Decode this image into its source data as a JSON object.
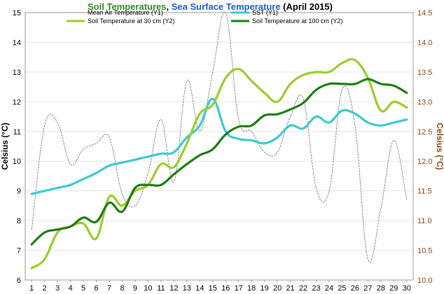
{
  "chart_data": {
    "type": "line",
    "title_parts": [
      {
        "text": "Soil Temperatures",
        "color": "#2E8B20"
      },
      {
        "text": ", ",
        "color": "#000000"
      },
      {
        "text": "Sea Surface Temperature",
        "color": "#1E5FCF"
      },
      {
        "text": " (April 2015)",
        "color": "#000000"
      }
    ],
    "ylabel_left": "Celsius (°C)",
    "ylabel_right": "Celsius (°C)",
    "colors": {
      "right_axis": "#8B4513",
      "gridline": "#e6e6e6"
    },
    "x": [
      1,
      2,
      3,
      4,
      5,
      6,
      7,
      8,
      9,
      10,
      11,
      12,
      13,
      14,
      15,
      16,
      17,
      18,
      19,
      20,
      21,
      22,
      23,
      24,
      25,
      26,
      27,
      28,
      29,
      30
    ],
    "x_tick_labels": [
      "1",
      "2",
      "3",
      "4",
      "5",
      "6",
      "7",
      "8",
      "9",
      "10",
      "11",
      "12",
      "13",
      "14",
      "15",
      "16",
      "17",
      "18",
      "19",
      "20",
      "21",
      "22",
      "23",
      "24",
      "25",
      "26",
      "27",
      "28",
      "29",
      "30"
    ],
    "y_left": {
      "min": 6,
      "max": 15,
      "ticks": [
        6,
        7,
        8,
        9,
        10,
        11,
        12,
        13,
        14,
        15
      ],
      "tick_labels": [
        "6",
        "7",
        "8",
        "9",
        "10",
        "11",
        "12",
        "13",
        "14",
        "15"
      ]
    },
    "y_right": {
      "min": 10.0,
      "max": 14.5,
      "ticks": [
        10.0,
        10.5,
        11.0,
        11.5,
        12.0,
        12.5,
        13.0,
        13.5,
        14.0,
        14.5
      ],
      "tick_labels": [
        "10.0",
        "10.5",
        "11.0",
        "11.5",
        "12.0",
        "12.5",
        "13.0",
        "13.5",
        "14.0",
        "14.5"
      ]
    },
    "grid": true,
    "legend_placement": "top",
    "series": [
      {
        "name": "Mean Air Temperature (Y1)",
        "axis": "left",
        "color": "#888888",
        "dashed": true,
        "width": 1,
        "values": [
          7.7,
          11.2,
          11.3,
          9.9,
          10.4,
          10.6,
          10.8,
          8.9,
          8.5,
          9.6,
          11.4,
          9.3,
          12.7,
          11.0,
          13.0,
          15.0,
          11.4,
          11.0,
          10.3,
          10.3,
          11.5,
          12.1,
          9.1,
          9.0,
          12.4,
          11.2,
          6.7,
          8.4,
          10.7,
          8.7
        ]
      },
      {
        "name": "SST (Y1)",
        "axis": "left",
        "color": "#3EC9D0",
        "dashed": false,
        "width": 3.2,
        "values": [
          8.9,
          9.0,
          9.1,
          9.2,
          9.4,
          9.6,
          9.85,
          9.95,
          10.05,
          10.15,
          10.25,
          10.3,
          10.8,
          11.2,
          12.1,
          11.0,
          10.75,
          10.7,
          10.6,
          10.8,
          11.2,
          11.1,
          11.5,
          11.3,
          11.7,
          11.6,
          11.3,
          11.2,
          11.3,
          11.4
        ]
      },
      {
        "name": "Soil Temperature at 30 cm (Y2)",
        "axis": "right",
        "color": "#9ACD2D",
        "dashed": false,
        "width": 3.2,
        "values": [
          10.2,
          10.35,
          10.8,
          10.9,
          10.95,
          10.7,
          11.4,
          11.25,
          11.5,
          11.6,
          11.95,
          11.9,
          12.3,
          12.8,
          12.95,
          13.4,
          13.55,
          13.35,
          13.15,
          13.0,
          13.3,
          13.45,
          13.5,
          13.5,
          13.65,
          13.7,
          13.4,
          12.85,
          13.0,
          12.9
        ]
      },
      {
        "name": "Soil Temperature at 100 cm (Y2)",
        "axis": "right",
        "color": "#1E7D14",
        "dashed": false,
        "width": 3.2,
        "values": [
          10.6,
          10.8,
          10.85,
          10.9,
          11.05,
          10.98,
          11.3,
          11.15,
          11.55,
          11.6,
          11.6,
          11.78,
          11.95,
          12.1,
          12.2,
          12.45,
          12.58,
          12.6,
          12.77,
          12.79,
          12.87,
          12.98,
          13.2,
          13.3,
          13.3,
          13.3,
          13.38,
          13.3,
          13.27,
          13.15
        ]
      }
    ]
  }
}
